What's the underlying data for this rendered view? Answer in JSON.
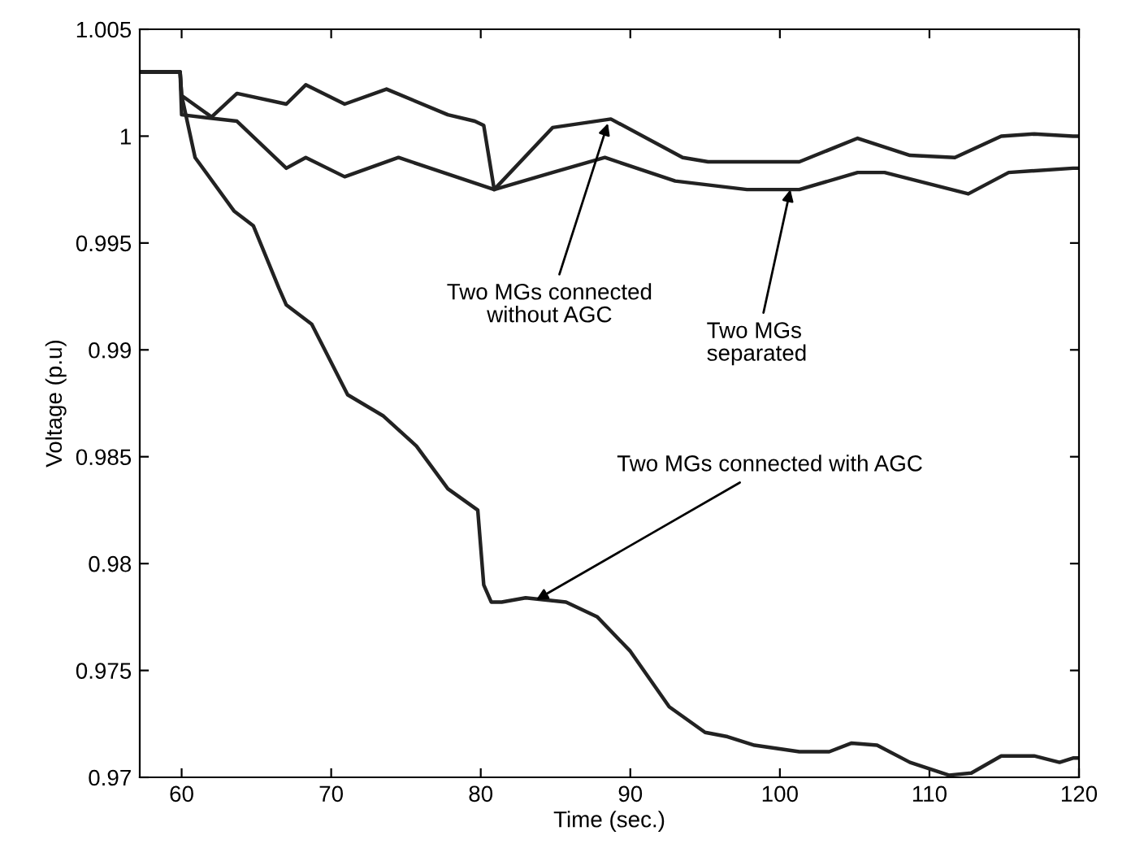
{
  "chart_data": {
    "type": "line",
    "xlabel": "Time (sec.)",
    "ylabel": "Voltage (p.u)",
    "xlim": [
      57.2,
      120
    ],
    "xticks": [
      60,
      70,
      80,
      90,
      100,
      110,
      120
    ],
    "ylim": [
      0.97,
      1.005
    ],
    "yticks": [
      0.97,
      0.975,
      0.98,
      0.985,
      0.99,
      0.995,
      1,
      1.005
    ],
    "grid": false,
    "legend": false,
    "marker": "none",
    "line_style": "solid",
    "series": [
      {
        "color": "#222222",
        "x": [
          57.2,
          59.9,
          60.0,
          62.0,
          63.7,
          67.0,
          68.3,
          70.9,
          73.7,
          77.8,
          79.6,
          80.2,
          80.9,
          84.8,
          88.7,
          93.5,
          95.2,
          97.8,
          101.3,
          105.2,
          108.7,
          111.7,
          114.8,
          117.0,
          119.6,
          120
        ],
        "values": [
          1.003,
          1.003,
          1.0019,
          1.0009,
          1.002,
          1.0015,
          1.0024,
          1.0015,
          1.0022,
          1.001,
          1.0007,
          1.0005,
          0.9975,
          1.0004,
          1.0008,
          0.999,
          0.9988,
          0.9988,
          0.9988,
          0.9999,
          0.9991,
          0.999,
          1.0,
          1.0001,
          1.0,
          1.0
        ]
      },
      {
        "color": "#222222",
        "x": [
          57.2,
          59.9,
          60.0,
          63.7,
          67.0,
          68.3,
          70.9,
          74.5,
          80.9,
          84.8,
          88.3,
          93.0,
          97.8,
          101.3,
          105.2,
          107.0,
          112.6,
          115.3,
          119.6,
          120
        ],
        "values": [
          1.003,
          1.003,
          1.001,
          1.0007,
          0.9985,
          0.999,
          0.9981,
          0.999,
          0.9975,
          0.9983,
          0.999,
          0.9979,
          0.9975,
          0.9975,
          0.9983,
          0.9983,
          0.9973,
          0.9983,
          0.9985,
          0.9985
        ]
      },
      {
        "color": "#222222",
        "x": [
          57.2,
          59.9,
          60.0,
          60.9,
          63.5,
          64.8,
          66.5,
          67.0,
          68.7,
          71.1,
          73.5,
          75.7,
          77.8,
          79.8,
          80.2,
          80.7,
          81.4,
          83.0,
          85.7,
          87.8,
          90.0,
          92.6,
          95.0,
          96.5,
          98.3,
          101.3,
          103.3,
          104.8,
          106.5,
          108.7,
          111.3,
          112.8,
          114.8,
          117.0,
          118.7,
          119.6,
          120
        ],
        "values": [
          1.003,
          1.003,
          1.0019,
          0.999,
          0.9965,
          0.9958,
          0.9929,
          0.9921,
          0.9912,
          0.9879,
          0.9869,
          0.9855,
          0.9835,
          0.9825,
          0.979,
          0.9782,
          0.9782,
          0.9784,
          0.9782,
          0.9775,
          0.9759,
          0.9733,
          0.9721,
          0.9719,
          0.9715,
          0.9712,
          0.9712,
          0.9716,
          0.9715,
          0.9707,
          0.9701,
          0.9702,
          0.971,
          0.971,
          0.9707,
          0.9709,
          0.9709
        ]
      }
    ],
    "annotations": [
      {
        "text": "Two MGs connected\nwithout AGC",
        "x": 88.5,
        "y": 1.0006
      },
      {
        "text": "Two MGs\nseparated",
        "x": 100.7,
        "y": 0.9975
      },
      {
        "text": "Two MGs connected with AGC",
        "x": 83.7,
        "y": 0.9783
      }
    ]
  }
}
